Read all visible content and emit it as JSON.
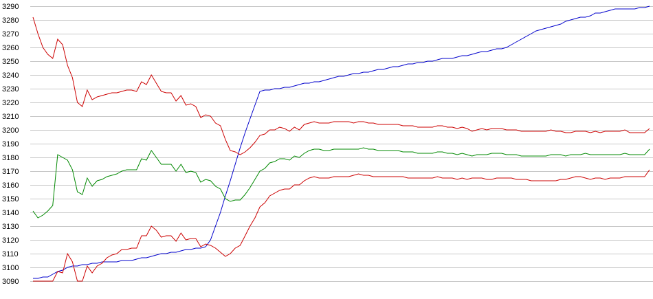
{
  "chart_data": {
    "type": "line",
    "title": "",
    "xlabel": "",
    "ylabel": "",
    "ylim": [
      3090,
      3290
    ],
    "yticks": [
      3090,
      3100,
      3110,
      3120,
      3130,
      3140,
      3150,
      3160,
      3170,
      3180,
      3190,
      3200,
      3210,
      3220,
      3230,
      3240,
      3250,
      3260,
      3270,
      3280,
      3290
    ],
    "grid": "horizontal",
    "legend": "none",
    "x_count": 126,
    "series": [
      {
        "color": "#0000cc",
        "values": [
          3092,
          3092,
          3093,
          3093,
          3095,
          3097,
          3098,
          3100,
          3101,
          3101,
          3102,
          3102,
          3103,
          3103,
          3104,
          3104,
          3104,
          3104,
          3105,
          3105,
          3105,
          3106,
          3107,
          3107,
          3108,
          3109,
          3110,
          3110,
          3111,
          3111,
          3112,
          3113,
          3113,
          3114,
          3114,
          3115,
          3120,
          3130,
          3140,
          3152,
          3163,
          3175,
          3187,
          3198,
          3208,
          3218,
          3228,
          3229,
          3229,
          3230,
          3230,
          3231,
          3231,
          3232,
          3233,
          3234,
          3234,
          3235,
          3235,
          3236,
          3237,
          3238,
          3239,
          3239,
          3240,
          3241,
          3241,
          3242,
          3242,
          3243,
          3244,
          3244,
          3245,
          3246,
          3246,
          3247,
          3248,
          3248,
          3249,
          3249,
          3250,
          3250,
          3251,
          3252,
          3252,
          3252,
          3253,
          3254,
          3254,
          3255,
          3256,
          3257,
          3257,
          3258,
          3259,
          3259,
          3260,
          3262,
          3264,
          3266,
          3268,
          3270,
          3272,
          3273,
          3274,
          3275,
          3276,
          3277,
          3279,
          3280,
          3281,
          3282,
          3282,
          3283,
          3285,
          3285,
          3286,
          3287,
          3288,
          3288,
          3288,
          3288,
          3288,
          3289,
          3289,
          3290
        ]
      },
      {
        "color": "#cc0000",
        "values": [
          3282,
          3270,
          3260,
          3255,
          3252,
          3266,
          3262,
          3247,
          3238,
          3220,
          3217,
          3229,
          3222,
          3224,
          3225,
          3226,
          3227,
          3227,
          3228,
          3229,
          3229,
          3228,
          3235,
          3233,
          3240,
          3234,
          3228,
          3227,
          3227,
          3221,
          3225,
          3218,
          3219,
          3217,
          3209,
          3211,
          3210,
          3205,
          3203,
          3193,
          3185,
          3184,
          3182,
          3184,
          3187,
          3191,
          3196,
          3197,
          3200,
          3200,
          3202,
          3201,
          3199,
          3202,
          3200,
          3204,
          3205,
          3206,
          3205,
          3205,
          3205,
          3206,
          3206,
          3206,
          3206,
          3205,
          3206,
          3206,
          3205,
          3205,
          3204,
          3204,
          3204,
          3204,
          3204,
          3203,
          3203,
          3203,
          3202,
          3202,
          3202,
          3202,
          3203,
          3203,
          3202,
          3202,
          3201,
          3202,
          3201,
          3199,
          3200,
          3201,
          3200,
          3201,
          3201,
          3201,
          3200,
          3200,
          3200,
          3199,
          3199,
          3199,
          3199,
          3199,
          3199,
          3200,
          3199,
          3199,
          3198,
          3198,
          3199,
          3199,
          3199,
          3198,
          3199,
          3198,
          3199,
          3199,
          3199,
          3199,
          3200,
          3198,
          3198,
          3198,
          3198,
          3201
        ]
      },
      {
        "color": "#008800",
        "values": [
          3141,
          3136,
          3138,
          3141,
          3145,
          3182,
          3180,
          3178,
          3171,
          3155,
          3153,
          3165,
          3159,
          3163,
          3164,
          3166,
          3167,
          3168,
          3170,
          3171,
          3171,
          3171,
          3179,
          3178,
          3185,
          3180,
          3175,
          3175,
          3175,
          3170,
          3175,
          3169,
          3170,
          3169,
          3162,
          3164,
          3163,
          3159,
          3157,
          3150,
          3148,
          3149,
          3149,
          3153,
          3158,
          3164,
          3170,
          3172,
          3176,
          3177,
          3179,
          3179,
          3178,
          3181,
          3180,
          3183,
          3185,
          3186,
          3186,
          3185,
          3185,
          3186,
          3186,
          3186,
          3186,
          3186,
          3186,
          3187,
          3186,
          3186,
          3185,
          3185,
          3185,
          3185,
          3185,
          3184,
          3184,
          3184,
          3183,
          3183,
          3183,
          3183,
          3184,
          3184,
          3183,
          3183,
          3182,
          3183,
          3182,
          3181,
          3182,
          3182,
          3182,
          3183,
          3183,
          3183,
          3182,
          3182,
          3182,
          3181,
          3181,
          3181,
          3181,
          3181,
          3181,
          3182,
          3182,
          3182,
          3181,
          3182,
          3182,
          3182,
          3183,
          3182,
          3182,
          3182,
          3182,
          3182,
          3182,
          3182,
          3183,
          3182,
          3182,
          3182,
          3182,
          3186
        ]
      },
      {
        "color": "#cc0000",
        "values": [
          3090,
          3090,
          3090,
          3090,
          3090,
          3097,
          3096,
          3110,
          3104,
          3090,
          3090,
          3101,
          3096,
          3101,
          3103,
          3107,
          3109,
          3110,
          3113,
          3113,
          3114,
          3114,
          3123,
          3123,
          3130,
          3127,
          3122,
          3123,
          3123,
          3119,
          3125,
          3120,
          3121,
          3121,
          3115,
          3117,
          3116,
          3114,
          3111,
          3108,
          3110,
          3114,
          3116,
          3123,
          3130,
          3136,
          3144,
          3147,
          3152,
          3154,
          3156,
          3157,
          3157,
          3160,
          3160,
          3163,
          3165,
          3166,
          3165,
          3165,
          3165,
          3166,
          3166,
          3166,
          3166,
          3167,
          3168,
          3167,
          3167,
          3166,
          3166,
          3166,
          3166,
          3166,
          3166,
          3166,
          3165,
          3165,
          3165,
          3165,
          3165,
          3165,
          3166,
          3165,
          3165,
          3165,
          3164,
          3165,
          3164,
          3165,
          3165,
          3165,
          3164,
          3164,
          3165,
          3165,
          3165,
          3165,
          3164,
          3164,
          3164,
          3163,
          3163,
          3163,
          3163,
          3163,
          3163,
          3164,
          3164,
          3165,
          3166,
          3166,
          3165,
          3164,
          3165,
          3165,
          3164,
          3165,
          3165,
          3165,
          3166,
          3166,
          3166,
          3166,
          3166,
          3171
        ]
      }
    ]
  }
}
